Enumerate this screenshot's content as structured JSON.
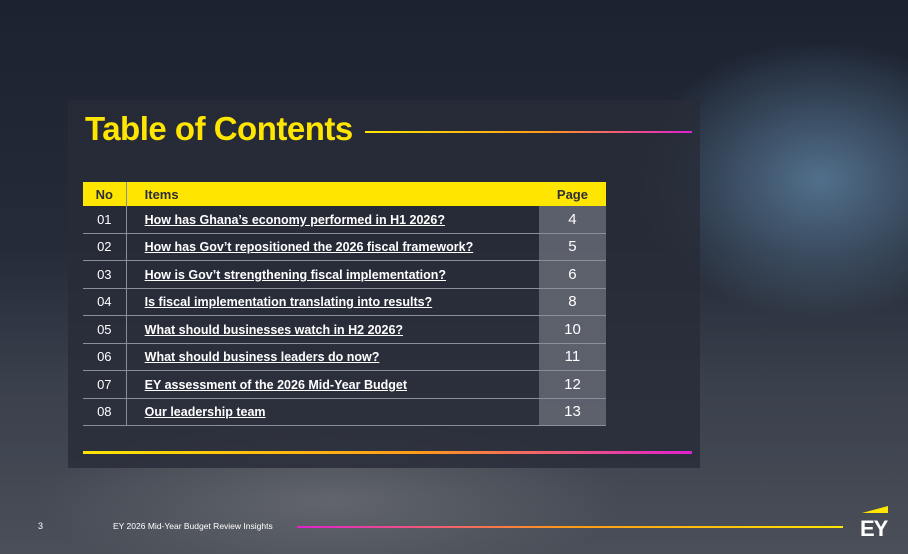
{
  "header": {
    "title": "Table of Contents"
  },
  "table": {
    "columns": [
      "No",
      "Items",
      "Page"
    ],
    "rows": [
      [
        "01",
        "How has Ghana’s economy performed in H1 2026?",
        "4"
      ],
      [
        "02",
        "How has Gov’t repositioned the 2026 fiscal framework?",
        "5"
      ],
      [
        "03",
        "How is Gov’t strengthening fiscal implementation?",
        "6"
      ],
      [
        "04",
        "Is fiscal implementation translating into results?",
        "8"
      ],
      [
        "05",
        "What should businesses watch in H2 2026?",
        "10"
      ],
      [
        "06",
        "What should business leaders do now?",
        "11"
      ],
      [
        "07",
        "EY assessment of the 2026 Mid-Year Budget",
        "12"
      ],
      [
        "08",
        "Our leadership team",
        "13"
      ]
    ]
  },
  "footer": {
    "page": "3",
    "text": "EY 2026 Mid-Year Budget Review Insights",
    "logo": "EY"
  }
}
